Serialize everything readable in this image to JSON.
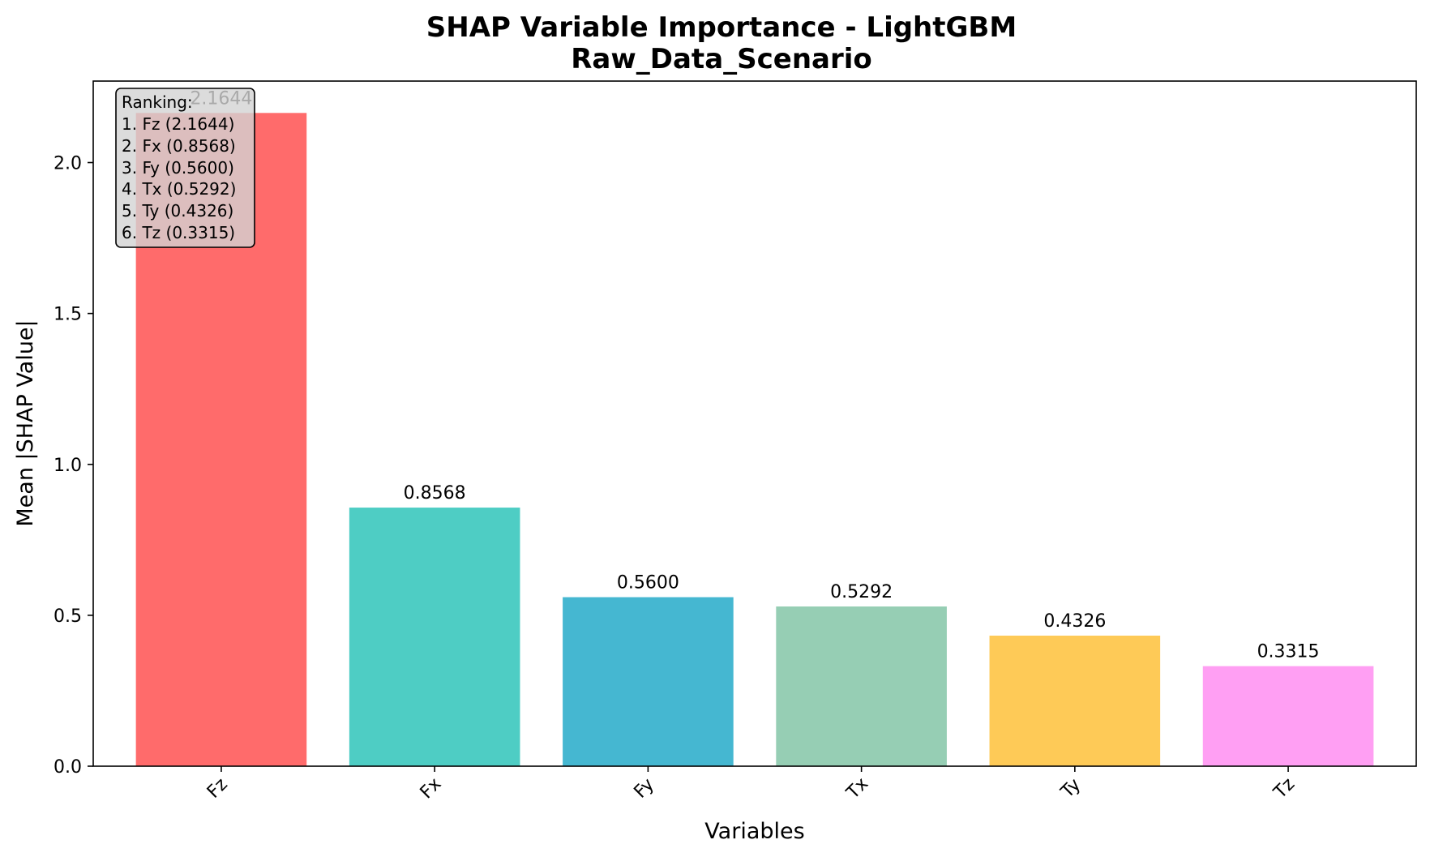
{
  "chart_data": {
    "type": "bar",
    "title": "SHAP Variable Importance - LightGBM",
    "subtitle": "Raw_Data_Scenario",
    "xlabel": "Variables",
    "ylabel": "Mean |SHAP Value|",
    "categories": [
      "Fz",
      "Fx",
      "Fy",
      "Tx",
      "Ty",
      "Tz"
    ],
    "values": [
      2.1644,
      0.8568,
      0.56,
      0.5292,
      0.4326,
      0.3315
    ],
    "value_labels": [
      "2.1644",
      "0.8568",
      "0.5600",
      "0.5292",
      "0.4326",
      "0.3315"
    ],
    "colors": [
      "#FF6B6B",
      "#4ECDC4",
      "#45B7D1",
      "#96CEB4",
      "#FECA57",
      "#FF9FF3"
    ],
    "ylim": [
      0,
      2.27
    ],
    "yticks": [
      0.0,
      0.5,
      1.0,
      1.5,
      2.0
    ],
    "ytick_labels": [
      "0.0",
      "0.5",
      "1.0",
      "1.5",
      "2.0"
    ],
    "grid": false,
    "annotation": {
      "position": "top-left",
      "lines": [
        "Ranking:",
        "1. Fz (2.1644)",
        "2. Fx (0.8568)",
        "3. Fy (0.5600)",
        "4. Tx (0.5292)",
        "5. Ty (0.4326)",
        "6. Tz (0.3315)"
      ]
    }
  }
}
